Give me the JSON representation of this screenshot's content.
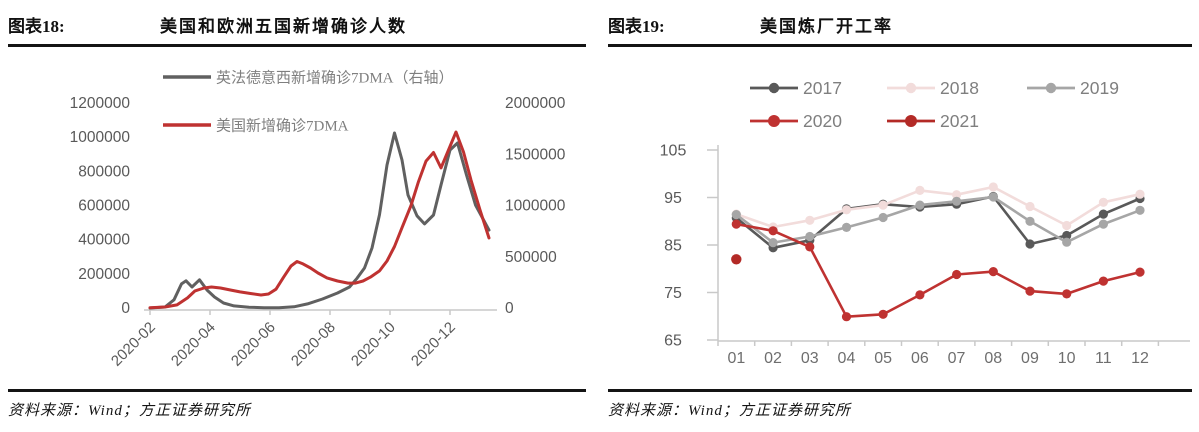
{
  "panels": [
    {
      "figure_label": "图表18:",
      "title": "美国和欧洲五国新增确诊人数",
      "source": "资料来源：Wind；方正证券研究所"
    },
    {
      "figure_label": "图表19:",
      "title": "美国炼厂开工率",
      "source": "资料来源：Wind；方正证券研究所"
    }
  ],
  "chart_data": [
    {
      "type": "line",
      "title": "美国和欧洲五国新增确诊人数",
      "grid": false,
      "legend_position": "top-left",
      "x_axis": {
        "unit": "months since 2020-02",
        "range": [
          0,
          11.4
        ],
        "tick_positions": [
          0,
          2,
          4,
          6,
          8,
          10
        ],
        "tick_labels": [
          "2020-02",
          "2020-04",
          "2020-06",
          "2020-08",
          "2020-10",
          "2020-12"
        ]
      },
      "y_axis_left": {
        "range": [
          0,
          1200000
        ],
        "ticks": [
          0,
          200000,
          400000,
          600000,
          800000,
          1000000,
          1200000
        ]
      },
      "y_axis_right": {
        "range": [
          0,
          2000000
        ],
        "ticks": [
          0,
          500000,
          1000000,
          1500000,
          2000000
        ]
      },
      "series": [
        {
          "name": "英法德意西新增确诊7DMA（右轴）",
          "axis": "right",
          "color": "#606060",
          "points": [
            [
              0,
              0
            ],
            [
              0.5,
              10000
            ],
            [
              0.8,
              80000
            ],
            [
              1.05,
              235000
            ],
            [
              1.2,
              265000
            ],
            [
              1.4,
              205000
            ],
            [
              1.65,
              275000
            ],
            [
              1.9,
              176000
            ],
            [
              2.15,
              107000
            ],
            [
              2.45,
              49000
            ],
            [
              2.8,
              20000
            ],
            [
              3.3,
              8000
            ],
            [
              3.8,
              3000
            ],
            [
              4.3,
              3000
            ],
            [
              4.8,
              12000
            ],
            [
              5.25,
              40000
            ],
            [
              5.75,
              88000
            ],
            [
              6.25,
              146000
            ],
            [
              6.65,
              205000
            ],
            [
              6.9,
              290000
            ],
            [
              7.15,
              390000
            ],
            [
              7.4,
              585000
            ],
            [
              7.65,
              910000
            ],
            [
              7.9,
              1395000
            ],
            [
              8.15,
              1707000
            ],
            [
              8.4,
              1444000
            ],
            [
              8.6,
              1102000
            ],
            [
              8.9,
              900000
            ],
            [
              9.15,
              820000
            ],
            [
              9.45,
              907000
            ],
            [
              9.7,
              1200000
            ],
            [
              10.0,
              1541000
            ],
            [
              10.25,
              1610000
            ],
            [
              10.55,
              1298000
            ],
            [
              10.85,
              1005000
            ],
            [
              11.3,
              760000
            ]
          ]
        },
        {
          "name": "美国新增确诊7DMA",
          "axis": "left",
          "color": "#bf3231",
          "points": [
            [
              0,
              2000
            ],
            [
              0.5,
              6000
            ],
            [
              0.9,
              18000
            ],
            [
              1.25,
              59000
            ],
            [
              1.5,
              100000
            ],
            [
              1.8,
              117000
            ],
            [
              2.05,
              123000
            ],
            [
              2.35,
              117000
            ],
            [
              2.7,
              105000
            ],
            [
              3.0,
              94000
            ],
            [
              3.35,
              85000
            ],
            [
              3.7,
              76000
            ],
            [
              3.95,
              82000
            ],
            [
              4.2,
              110000
            ],
            [
              4.45,
              180000
            ],
            [
              4.7,
              246000
            ],
            [
              4.9,
              272000
            ],
            [
              5.1,
              258000
            ],
            [
              5.35,
              234000
            ],
            [
              5.6,
              205000
            ],
            [
              5.9,
              176000
            ],
            [
              6.25,
              158000
            ],
            [
              6.6,
              146000
            ],
            [
              6.85,
              146000
            ],
            [
              7.1,
              158000
            ],
            [
              7.35,
              181000
            ],
            [
              7.65,
              217000
            ],
            [
              7.9,
              275000
            ],
            [
              8.15,
              360000
            ],
            [
              8.4,
              470000
            ],
            [
              8.7,
              600000
            ],
            [
              8.95,
              740000
            ],
            [
              9.2,
              860000
            ],
            [
              9.45,
              910000
            ],
            [
              9.7,
              820000
            ],
            [
              9.95,
              925000
            ],
            [
              10.2,
              1030000
            ],
            [
              10.45,
              913000
            ],
            [
              10.7,
              749000
            ],
            [
              11.0,
              574000
            ],
            [
              11.3,
              410000
            ]
          ]
        }
      ]
    },
    {
      "type": "line",
      "title": "美国炼厂开工率",
      "grid": false,
      "legend_position": "top",
      "markers": true,
      "categories": [
        "01",
        "02",
        "03",
        "04",
        "05",
        "06",
        "07",
        "08",
        "09",
        "10",
        "11",
        "12"
      ],
      "y_axis": {
        "range": [
          65,
          105
        ],
        "ticks": [
          65,
          75,
          85,
          95,
          105
        ]
      },
      "series": [
        {
          "name": "2017",
          "color": "#595959",
          "values": [
            90.7,
            84.4,
            86.0,
            92.6,
            93.6,
            93.0,
            93.6,
            95.2,
            85.2,
            87.0,
            91.5,
            94.8
          ]
        },
        {
          "name": "2018",
          "color": "#f2dcdb",
          "values": [
            91.5,
            88.8,
            90.2,
            92.4,
            93.4,
            96.5,
            95.6,
            97.2,
            93.1,
            89.1,
            94.0,
            95.7
          ]
        },
        {
          "name": "2019",
          "color": "#a6a6a6",
          "values": [
            91.4,
            85.5,
            86.8,
            88.7,
            90.8,
            93.4,
            94.2,
            95.1,
            90.0,
            85.6,
            89.4,
            92.3
          ]
        },
        {
          "name": "2020",
          "color": "#bf3231",
          "values": [
            89.4,
            88.0,
            84.6,
            69.9,
            70.4,
            74.5,
            78.8,
            79.4,
            75.3,
            74.7,
            77.4,
            79.3
          ]
        },
        {
          "name": "2021",
          "color": "#b32a26",
          "values": [
            82.0,
            null,
            null,
            null,
            null,
            null,
            null,
            null,
            null,
            null,
            null,
            null
          ]
        }
      ]
    }
  ]
}
